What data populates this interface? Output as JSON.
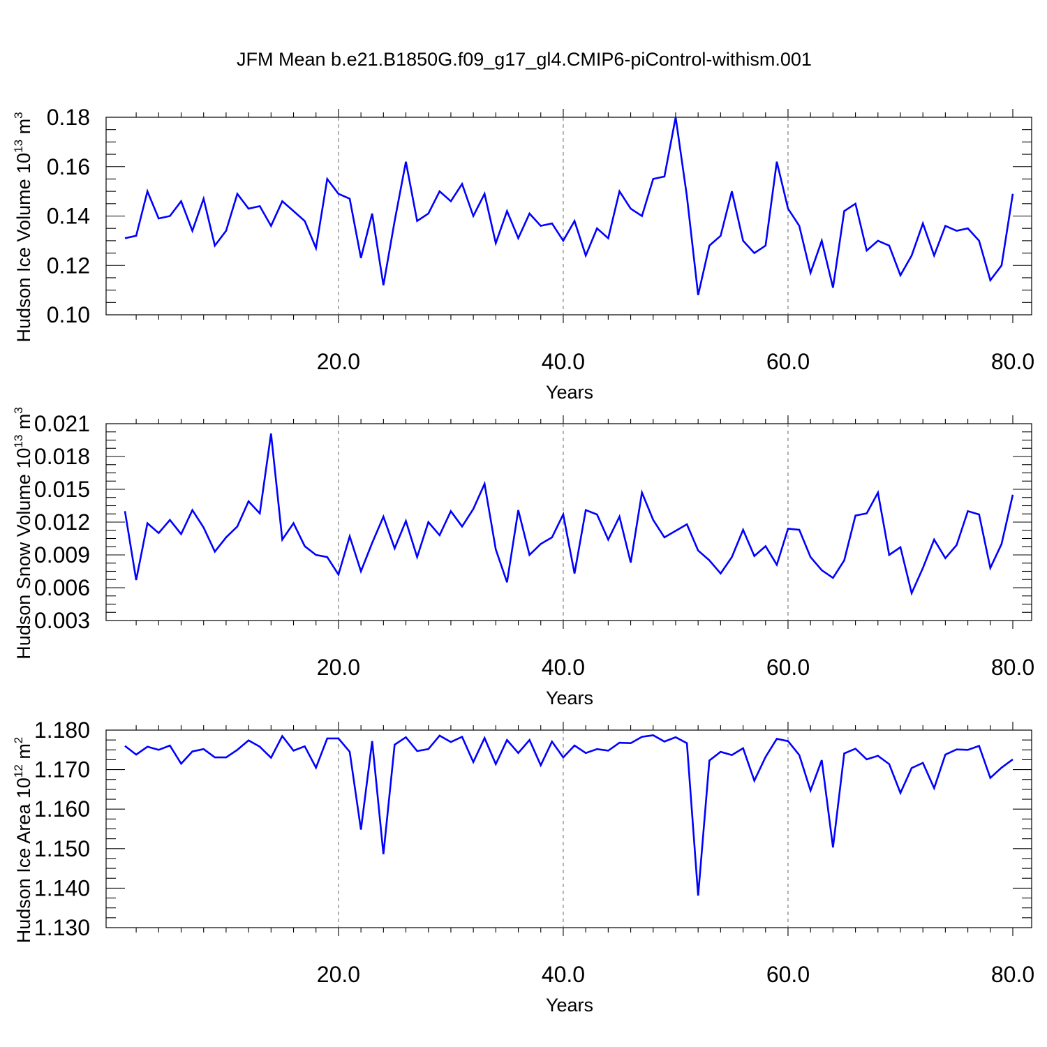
{
  "title": "JFM Mean b.e21.B1850G.f09_g17_gl4.CMIP6-piControl-withism.001",
  "chart_data": [
    {
      "type": "line",
      "ylabel": "Hudson Ice Volume",
      "yunit_base": "10",
      "yunit_exp": "13",
      "yunit_tail": "m",
      "yunit_tail_exp": "3",
      "xlabel": "Years",
      "xlim": [
        1,
        80
      ],
      "ylim": [
        0.1,
        0.18
      ],
      "yticks": [
        0.1,
        0.12,
        0.14,
        0.16,
        0.18
      ],
      "ytick_labels": [
        "0.10",
        "0.12",
        "0.14",
        "0.16",
        "0.18"
      ],
      "xticks": [
        20,
        40,
        60,
        80
      ],
      "xtick_labels": [
        "20.0",
        "40.0",
        "60.0",
        "80.0"
      ],
      "grid": "vertical dashed at major x ticks",
      "color": "#0000ff",
      "x": [
        1,
        2,
        3,
        4,
        5,
        6,
        7,
        8,
        9,
        10,
        11,
        12,
        13,
        14,
        15,
        16,
        17,
        18,
        19,
        20,
        21,
        22,
        23,
        24,
        25,
        26,
        27,
        28,
        29,
        30,
        31,
        32,
        33,
        34,
        35,
        36,
        37,
        38,
        39,
        40,
        41,
        42,
        43,
        44,
        45,
        46,
        47,
        48,
        49,
        50,
        51,
        52,
        53,
        54,
        55,
        56,
        57,
        58,
        59,
        60,
        61,
        62,
        63,
        64,
        65,
        66,
        67,
        68,
        69,
        70,
        71,
        72,
        73,
        74,
        75,
        76,
        77,
        78,
        79,
        80
      ],
      "values": [
        0.131,
        0.132,
        0.15,
        0.139,
        0.14,
        0.146,
        0.134,
        0.147,
        0.128,
        0.134,
        0.149,
        0.143,
        0.144,
        0.136,
        0.146,
        0.142,
        0.138,
        0.127,
        0.155,
        0.149,
        0.147,
        0.123,
        0.141,
        0.112,
        0.138,
        0.162,
        0.138,
        0.141,
        0.15,
        0.146,
        0.153,
        0.14,
        0.149,
        0.129,
        0.142,
        0.131,
        0.141,
        0.136,
        0.137,
        0.13,
        0.138,
        0.124,
        0.135,
        0.131,
        0.15,
        0.143,
        0.14,
        0.155,
        0.156,
        0.18,
        0.148,
        0.108,
        0.128,
        0.132,
        0.15,
        0.13,
        0.125,
        0.128,
        0.162,
        0.143,
        0.136,
        0.117,
        0.13,
        0.111,
        0.142,
        0.145,
        0.126,
        0.13,
        0.128,
        0.116,
        0.124,
        0.137,
        0.124,
        0.136,
        0.134,
        0.135,
        0.13,
        0.114,
        0.12,
        0.149
      ]
    },
    {
      "type": "line",
      "ylabel": "Hudson Snow Volume",
      "yunit_base": "10",
      "yunit_exp": "13",
      "yunit_tail": "m",
      "yunit_tail_exp": "3",
      "xlabel": "Years",
      "xlim": [
        1,
        80
      ],
      "ylim": [
        0.003,
        0.021
      ],
      "yticks": [
        0.003,
        0.006,
        0.009,
        0.012,
        0.015,
        0.018,
        0.021
      ],
      "ytick_labels": [
        "0.003",
        "0.006",
        "0.009",
        "0.012",
        "0.015",
        "0.018",
        "0.021"
      ],
      "xticks": [
        20,
        40,
        60,
        80
      ],
      "xtick_labels": [
        "20.0",
        "40.0",
        "60.0",
        "80.0"
      ],
      "grid": "vertical dashed at major x ticks",
      "color": "#0000ff",
      "x": [
        1,
        2,
        3,
        4,
        5,
        6,
        7,
        8,
        9,
        10,
        11,
        12,
        13,
        14,
        15,
        16,
        17,
        18,
        19,
        20,
        21,
        22,
        23,
        24,
        25,
        26,
        27,
        28,
        29,
        30,
        31,
        32,
        33,
        34,
        35,
        36,
        37,
        38,
        39,
        40,
        41,
        42,
        43,
        44,
        45,
        46,
        47,
        48,
        49,
        50,
        51,
        52,
        53,
        54,
        55,
        56,
        57,
        58,
        59,
        60,
        61,
        62,
        63,
        64,
        65,
        66,
        67,
        68,
        69,
        70,
        71,
        72,
        73,
        74,
        75,
        76,
        77,
        78,
        79,
        80
      ],
      "values": [
        0.013,
        0.0067,
        0.0119,
        0.011,
        0.0122,
        0.0109,
        0.0131,
        0.0115,
        0.0093,
        0.0106,
        0.0116,
        0.0139,
        0.0128,
        0.0201,
        0.0104,
        0.0119,
        0.0098,
        0.009,
        0.0088,
        0.0072,
        0.0107,
        0.0075,
        0.0101,
        0.0125,
        0.0096,
        0.0121,
        0.0088,
        0.012,
        0.0108,
        0.013,
        0.0116,
        0.0132,
        0.0155,
        0.0095,
        0.0065,
        0.0131,
        0.009,
        0.01,
        0.0106,
        0.0127,
        0.0073,
        0.0131,
        0.0127,
        0.0104,
        0.0125,
        0.0083,
        0.0147,
        0.0122,
        0.0106,
        0.0112,
        0.0118,
        0.0094,
        0.0085,
        0.0073,
        0.0088,
        0.0113,
        0.0089,
        0.0098,
        0.0081,
        0.0114,
        0.0113,
        0.0088,
        0.0076,
        0.0069,
        0.0085,
        0.0126,
        0.0128,
        0.0147,
        0.009,
        0.0097,
        0.0055,
        0.0078,
        0.0104,
        0.0087,
        0.0099,
        0.013,
        0.0127,
        0.0078,
        0.01,
        0.0145
      ]
    },
    {
      "type": "line",
      "ylabel": "Hudson Ice Area",
      "yunit_base": "10",
      "yunit_exp": "12",
      "yunit_tail": "m",
      "yunit_tail_exp": "2",
      "xlabel": "Years",
      "xlim": [
        1,
        80
      ],
      "ylim": [
        1.13,
        1.18
      ],
      "yticks": [
        1.13,
        1.14,
        1.15,
        1.16,
        1.17,
        1.18
      ],
      "ytick_labels": [
        "1.130",
        "1.140",
        "1.150",
        "1.160",
        "1.170",
        "1.180"
      ],
      "xticks": [
        20,
        40,
        60,
        80
      ],
      "xtick_labels": [
        "20.0",
        "40.0",
        "60.0",
        "80.0"
      ],
      "grid": "vertical dashed at major x ticks",
      "color": "#0000ff",
      "x": [
        1,
        2,
        3,
        4,
        5,
        6,
        7,
        8,
        9,
        10,
        11,
        12,
        13,
        14,
        15,
        16,
        17,
        18,
        19,
        20,
        21,
        22,
        23,
        24,
        25,
        26,
        27,
        28,
        29,
        30,
        31,
        32,
        33,
        34,
        35,
        36,
        37,
        38,
        39,
        40,
        41,
        42,
        43,
        44,
        45,
        46,
        47,
        48,
        49,
        50,
        51,
        52,
        53,
        54,
        55,
        56,
        57,
        58,
        59,
        60,
        61,
        62,
        63,
        64,
        65,
        66,
        67,
        68,
        69,
        70,
        71,
        72,
        73,
        74,
        75,
        76,
        77,
        78,
        79,
        80
      ],
      "values": [
        1.176,
        1.1738,
        1.1758,
        1.175,
        1.1761,
        1.1715,
        1.1746,
        1.1752,
        1.1731,
        1.1731,
        1.175,
        1.1774,
        1.1758,
        1.173,
        1.1785,
        1.1748,
        1.1759,
        1.1705,
        1.1779,
        1.1779,
        1.1745,
        1.1548,
        1.1772,
        1.1486,
        1.1763,
        1.1782,
        1.1747,
        1.1752,
        1.1786,
        1.177,
        1.1783,
        1.1719,
        1.178,
        1.1714,
        1.1775,
        1.1742,
        1.1775,
        1.1711,
        1.1771,
        1.1731,
        1.1761,
        1.1742,
        1.1752,
        1.1748,
        1.1768,
        1.1767,
        1.1783,
        1.1787,
        1.1771,
        1.1782,
        1.1767,
        1.1381,
        1.1723,
        1.1745,
        1.1737,
        1.1754,
        1.1672,
        1.1732,
        1.1778,
        1.1772,
        1.1737,
        1.1647,
        1.1724,
        1.1503,
        1.1741,
        1.1753,
        1.1726,
        1.1735,
        1.1714,
        1.1641,
        1.1704,
        1.1717,
        1.1653,
        1.1738,
        1.1751,
        1.175,
        1.176,
        1.1679,
        1.1705,
        1.1726
      ]
    }
  ]
}
